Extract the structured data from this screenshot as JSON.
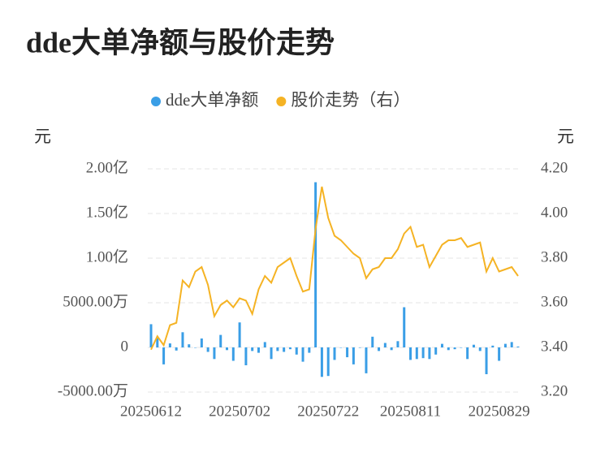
{
  "chart_data": {
    "type": "bar-line",
    "title": "dde大单净额与股价走势",
    "y_unit": "元",
    "y2_unit": "元",
    "categories": [
      "20250612",
      null,
      null,
      null,
      null,
      null,
      null,
      null,
      null,
      null,
      null,
      null,
      null,
      null,
      "20250702",
      null,
      null,
      null,
      null,
      null,
      null,
      null,
      null,
      null,
      null,
      null,
      null,
      null,
      "20250722",
      null,
      null,
      null,
      null,
      null,
      null,
      null,
      null,
      null,
      null,
      null,
      null,
      "20250811",
      null,
      null,
      null,
      null,
      null,
      null,
      null,
      null,
      null,
      null,
      null,
      null,
      null,
      "20250829",
      null,
      null,
      null
    ],
    "series": [
      {
        "name": "dde大单净额",
        "color": "#3a9ee6",
        "values": [
          2600,
          1200,
          -1900,
          450,
          -350,
          1700,
          350,
          0,
          1000,
          -500,
          -1300,
          1400,
          -300,
          -1500,
          2800,
          -2000,
          -400,
          -600,
          600,
          -1300,
          -400,
          -500,
          -200,
          -800,
          -1600,
          -600,
          18500,
          -3300,
          -3200,
          -1400,
          0,
          -1100,
          -1900,
          0,
          -2900,
          1200,
          -400,
          500,
          -300,
          700,
          4500,
          -1400,
          -1300,
          -1200,
          -1300,
          -800,
          400,
          -300,
          -200,
          0,
          -1300,
          300,
          -400,
          -3000,
          200,
          -1500,
          400,
          600,
          100
        ]
      },
      {
        "name": "股价走势（右）",
        "color": "#f5b324",
        "axis": "y2",
        "values": [
          3.39,
          3.45,
          3.41,
          3.5,
          3.51,
          3.7,
          3.67,
          3.74,
          3.76,
          3.68,
          3.54,
          3.59,
          3.61,
          3.58,
          3.62,
          3.61,
          3.55,
          3.66,
          3.72,
          3.69,
          3.76,
          3.78,
          3.8,
          3.72,
          3.65,
          3.66,
          3.93,
          4.12,
          3.98,
          3.9,
          3.88,
          3.85,
          3.82,
          3.8,
          3.71,
          3.75,
          3.76,
          3.8,
          3.8,
          3.84,
          3.91,
          3.94,
          3.85,
          3.86,
          3.76,
          3.81,
          3.86,
          3.88,
          3.88,
          3.89,
          3.85,
          3.86,
          3.87,
          3.74,
          3.8,
          3.74,
          3.75,
          3.76,
          3.72
        ]
      }
    ],
    "ylim": [
      -5000,
      20000
    ],
    "yticks": [
      {
        "value": 20000,
        "label": "2.00亿"
      },
      {
        "value": 15000,
        "label": "1.50亿"
      },
      {
        "value": 10000,
        "label": "1.00亿"
      },
      {
        "value": 5000,
        "label": "5000.00万"
      },
      0,
      {
        "value": -5000,
        "label": "-5000.00万"
      }
    ],
    "y2lim": [
      3.2,
      4.2
    ],
    "y2ticks": [
      {
        "value": 4.2,
        "label": "4.20"
      },
      {
        "value": 4.0,
        "label": "4.00"
      },
      {
        "value": 3.8,
        "label": "3.80"
      },
      {
        "value": 3.6,
        "label": "3.60"
      },
      {
        "value": 3.4,
        "label": "3.40"
      },
      {
        "value": 3.2,
        "label": "3.20"
      }
    ],
    "grid": true
  }
}
